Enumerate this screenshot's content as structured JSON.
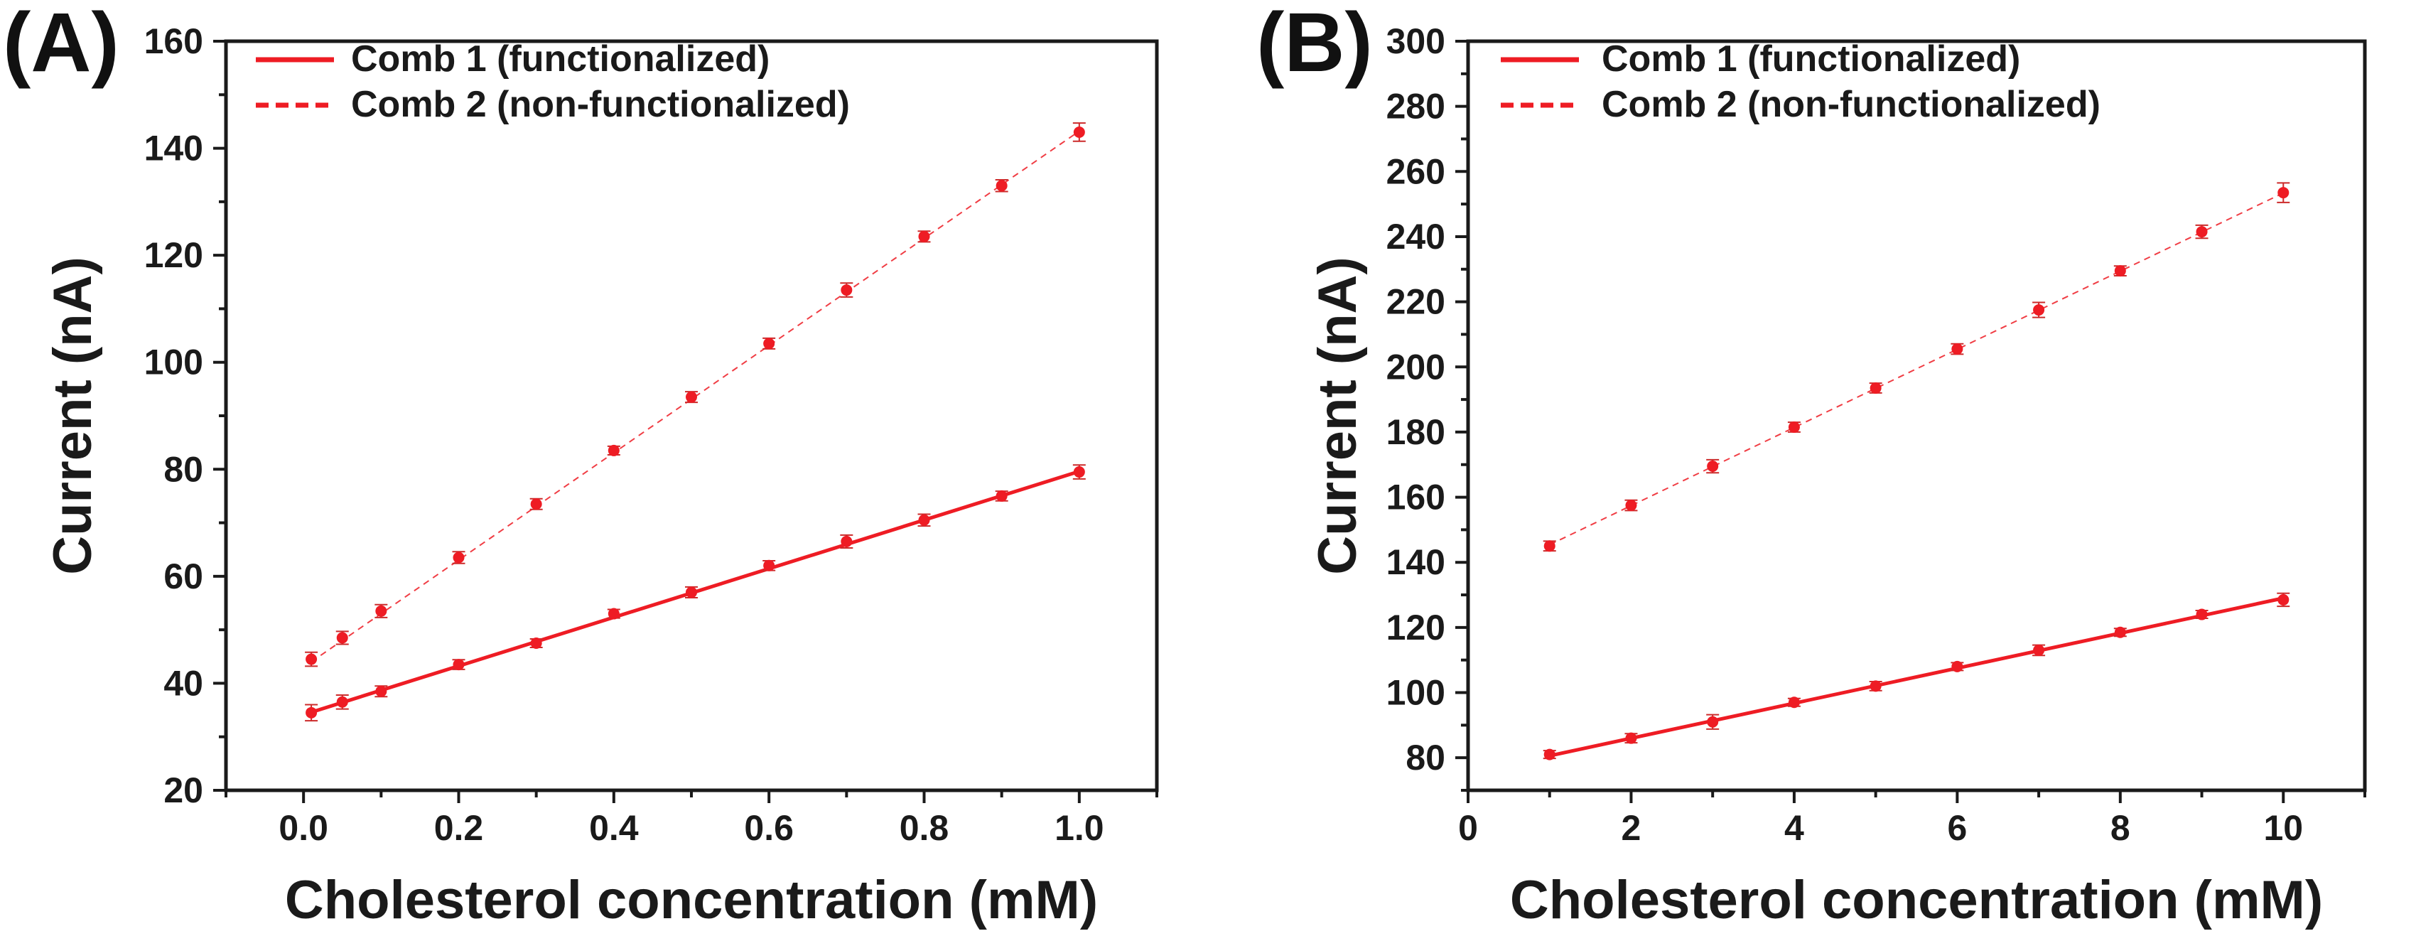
{
  "chart_data": [
    {
      "type": "scatter",
      "panel_label": "(A)",
      "xlabel": "Cholesterol concentration (mM)",
      "ylabel": "Current (nA)",
      "xlim": [
        -0.1,
        1.1
      ],
      "ylim": [
        20,
        160
      ],
      "xticks": [
        0.0,
        0.2,
        0.4,
        0.6,
        0.8,
        1.0
      ],
      "xtick_labels": [
        "0.0",
        "0.2",
        "0.4",
        "0.6",
        "0.8",
        "1.0"
      ],
      "yticks": [
        20,
        40,
        60,
        80,
        100,
        120,
        140,
        160
      ],
      "ytick_labels": [
        "20",
        "40",
        "60",
        "80",
        "100",
        "120",
        "140",
        "160"
      ],
      "legend_position": "top-left",
      "grid": false,
      "series": [
        {
          "name": "Comb 1 (functionalized)",
          "line_style": "solid",
          "color": "#ee1c24",
          "x": [
            0.01,
            0.05,
            0.1,
            0.2,
            0.3,
            0.4,
            0.5,
            0.6,
            0.7,
            0.8,
            0.9,
            1.0
          ],
          "y": [
            34.5,
            36.5,
            38.5,
            43.5,
            47.5,
            53,
            57,
            62,
            66.5,
            70.5,
            75,
            79.5
          ],
          "yerr": [
            1.5,
            1.3,
            1.0,
            0.9,
            0.8,
            0.8,
            1.0,
            0.9,
            1.2,
            1.1,
            0.9,
            1.3
          ],
          "fit": [
            34.6,
            79.6
          ]
        },
        {
          "name": "Comb 2 (non-functionalized)",
          "line_style": "dashed",
          "color": "#ee1c24",
          "x": [
            0.01,
            0.05,
            0.1,
            0.2,
            0.3,
            0.4,
            0.5,
            0.6,
            0.7,
            0.8,
            0.9,
            1.0
          ],
          "y": [
            44.5,
            48.5,
            53.5,
            63.5,
            73.5,
            83.5,
            93.5,
            103.5,
            113.5,
            123.5,
            133,
            143
          ],
          "yerr": [
            1.3,
            1.2,
            1.2,
            1.1,
            1.0,
            0.8,
            1.0,
            1.0,
            1.3,
            1.0,
            1.1,
            1.7
          ],
          "fit": [
            44.0,
            143.2
          ]
        }
      ]
    },
    {
      "type": "scatter",
      "panel_label": "(B)",
      "xlabel": "Cholesterol concentration (mM)",
      "ylabel": "Current (nA)",
      "xlim": [
        0,
        11
      ],
      "ylim": [
        70,
        300
      ],
      "xticks": [
        0,
        2,
        4,
        6,
        8,
        10
      ],
      "xtick_labels": [
        "0",
        "2",
        "4",
        "6",
        "8",
        "10"
      ],
      "yticks": [
        80,
        100,
        120,
        140,
        160,
        180,
        200,
        220,
        240,
        260,
        280,
        300
      ],
      "ytick_labels": [
        "80",
        "100",
        "120",
        "140",
        "160",
        "180",
        "200",
        "220",
        "240",
        "260",
        "280",
        "300"
      ],
      "legend_position": "top-left",
      "grid": false,
      "series": [
        {
          "name": "Comb 1 (functionalized)",
          "line_style": "solid",
          "color": "#ee1c24",
          "x": [
            1,
            2,
            3,
            4,
            5,
            6,
            7,
            8,
            9,
            10
          ],
          "y": [
            81,
            86,
            91,
            97,
            102,
            108,
            113,
            118.5,
            124,
            128.5
          ],
          "yerr": [
            1.2,
            1.4,
            2.2,
            1.2,
            1.4,
            1.2,
            1.6,
            1.2,
            1.2,
            2.0
          ],
          "fit": [
            80.6,
            129.0
          ]
        },
        {
          "name": "Comb 2 (non-functionalized)",
          "line_style": "dashed",
          "color": "#ee1c24",
          "x": [
            1,
            2,
            3,
            4,
            5,
            6,
            7,
            8,
            9,
            10
          ],
          "y": [
            145,
            157.5,
            169.5,
            181.5,
            193.5,
            205.5,
            217.5,
            229.5,
            241.5,
            253.5
          ],
          "yerr": [
            1.5,
            1.6,
            2.0,
            1.5,
            1.5,
            1.6,
            2.3,
            1.5,
            2.0,
            3.0
          ],
          "fit": [
            145.4,
            253.4
          ]
        }
      ]
    }
  ]
}
